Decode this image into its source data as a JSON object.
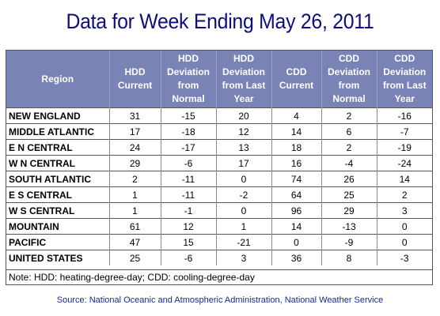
{
  "title": "Data for Week Ending May 26, 2011",
  "columns": {
    "region": "Region",
    "hdd_current": [
      "HDD",
      "Current"
    ],
    "hdd_dev_normal": [
      "HDD",
      "Deviation",
      "from",
      "Normal"
    ],
    "hdd_dev_last": [
      "HDD",
      "Deviation",
      "from Last",
      "Year"
    ],
    "cdd_current": [
      "CDD",
      "Current"
    ],
    "cdd_dev_normal": [
      "CDD",
      "Deviation",
      "from",
      "Normal"
    ],
    "cdd_dev_last": [
      "CDD",
      "Deviation",
      "from Last",
      "Year"
    ]
  },
  "chart_data": {
    "type": "table",
    "title": "Data for Week Ending May 26, 2011",
    "columns": [
      "Region",
      "HDD Current",
      "HDD Deviation from Normal",
      "HDD Deviation from Last Year",
      "CDD Current",
      "CDD Deviation from Normal",
      "CDD Deviation from Last Year"
    ],
    "rows": [
      [
        "NEW ENGLAND",
        "31",
        "-15",
        "20",
        "4",
        "2",
        "-16"
      ],
      [
        "MIDDLE ATLANTIC",
        "17",
        "-18",
        "12",
        "14",
        "6",
        "-7"
      ],
      [
        "E N CENTRAL",
        "24",
        "-17",
        "13",
        "18",
        "2",
        "-19"
      ],
      [
        "W N CENTRAL",
        "29",
        "-6",
        "17",
        "16",
        "-4",
        "-24"
      ],
      [
        "SOUTH ATLANTIC",
        "2",
        "-11",
        "0",
        "74",
        "26",
        "14"
      ],
      [
        "E S CENTRAL",
        "1",
        "-11",
        "-2",
        "64",
        "25",
        "2"
      ],
      [
        "W S CENTRAL",
        "1",
        "-1",
        "0",
        "96",
        "29",
        "3"
      ],
      [
        "MOUNTAIN",
        "61",
        "12",
        "1",
        "14",
        "-13",
        "0"
      ],
      [
        "PACIFIC",
        "47",
        "15",
        "-21",
        "0",
        "-9",
        "0"
      ],
      [
        "UNITED STATES",
        "25",
        "-6",
        "3",
        "36",
        "8",
        "-3"
      ]
    ]
  },
  "note": "Note: HDD: heating-degree-day; CDD: cooling-degree-day",
  "source": "Source:  National Oceanic and Atmospheric Administration, National Weather Service",
  "colors": {
    "title": "#0d0d80",
    "header_bg": "#7a83b6",
    "header_text": "#ffffff",
    "source": "#1a2a8a"
  }
}
